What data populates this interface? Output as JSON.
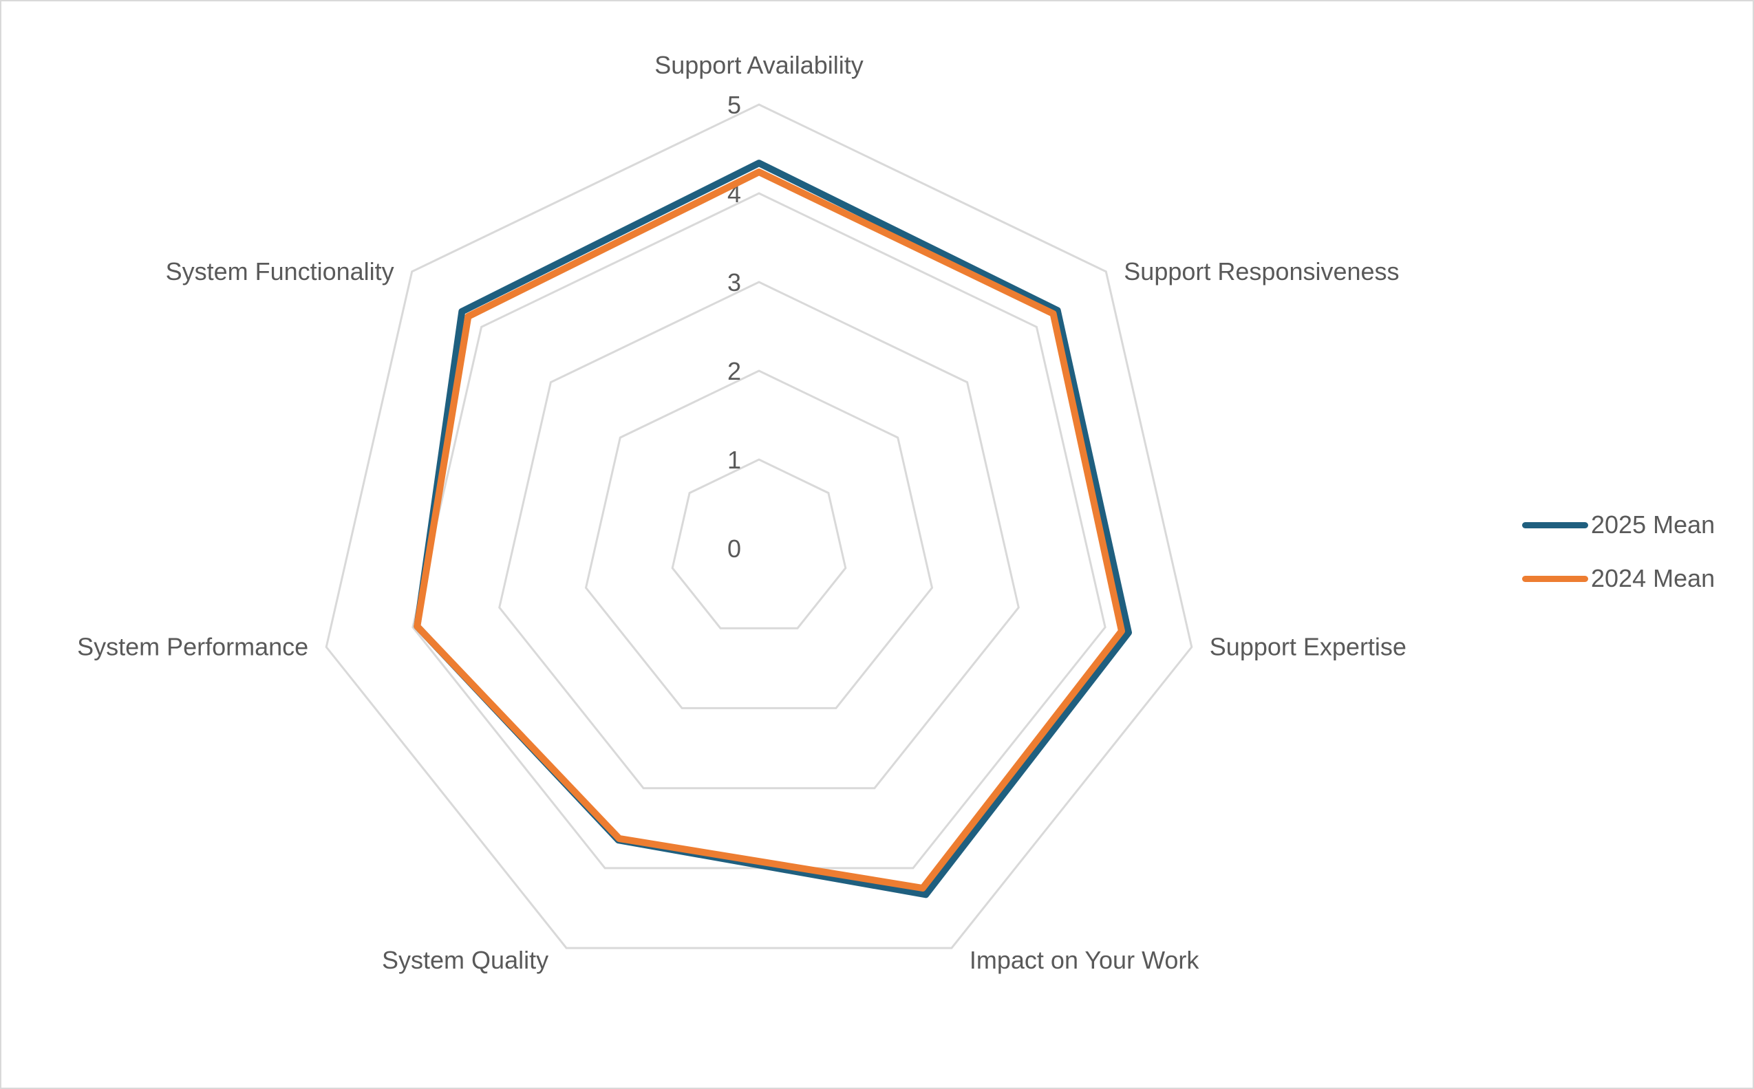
{
  "chart_data": {
    "type": "radar",
    "title": "",
    "axes": [
      "Support Availability",
      "Support Responsiveness",
      "Support Expertise",
      "Impact on Your Work",
      "System Quality",
      "System Functionality",
      "System Performance"
    ],
    "axis_order_clockwise_from_top": [
      "Support Availability",
      "Support Responsiveness",
      "Support Expertise",
      "Impact on Your Work",
      "System Quality",
      "System Performance",
      "System Functionality"
    ],
    "radial_ticks": [
      "0",
      "1",
      "2",
      "3",
      "4",
      "5"
    ],
    "rlim": [
      0,
      5
    ],
    "grid": true,
    "legend_position": "right",
    "series": [
      {
        "name": "2025 Mean",
        "color": "#1f5f7f",
        "values": {
          "Support Availability": 4.34,
          "Support Responsiveness": 4.3,
          "Support Expertise": 4.27,
          "Impact on Your Work": 4.33,
          "System Quality": 3.65,
          "System Performance": 3.95,
          "System Functionality": 4.28
        }
      },
      {
        "name": "2024 Mean",
        "color": "#ed7d31",
        "values": {
          "Support Availability": 4.24,
          "Support Responsiveness": 4.24,
          "Support Expertise": 4.19,
          "Impact on Your Work": 4.25,
          "System Quality": 3.63,
          "System Performance": 3.95,
          "System Functionality": 4.19
        }
      }
    ]
  }
}
